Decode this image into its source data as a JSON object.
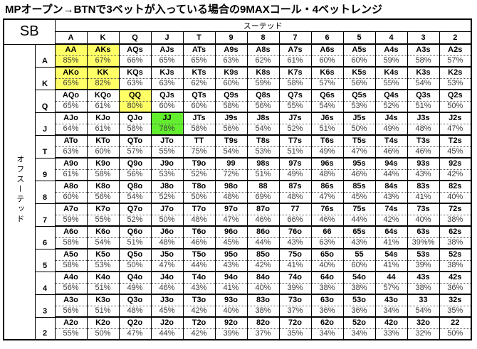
{
  "title": "MPオープン→BTNで3ベットが入っている場合の9MAXコール・4ベットレンジ",
  "position_label": "SB",
  "colors": {
    "highlight_yellow": "#ffff66",
    "highlight_green": "#63ef2e",
    "grid_line": "#000000",
    "pct_text": "#3a3a3a"
  },
  "chart_data": {
    "type": "table",
    "title": "MPオープン→BTNで3ベットが入っている場合の9MAXコール・4ベットレンジ",
    "corner_label": "SB",
    "suited_label": "スーテッド",
    "offsuit_label": "オフスーテッド",
    "columns": [
      "A",
      "K",
      "Q",
      "J",
      "T",
      "9",
      "8",
      "7",
      "6",
      "5",
      "4",
      "3",
      "2"
    ],
    "highlight_legend": {
      "y": "yellow (4bet pairs/AK)",
      "g": "green (JJ)"
    },
    "rows": [
      {
        "label": "A",
        "cells": [
          [
            "AA",
            "85%",
            "y"
          ],
          [
            "AKs",
            "67%",
            "y"
          ],
          [
            "AQs",
            "66%"
          ],
          [
            "AJs",
            "65%"
          ],
          [
            "ATs",
            "65%"
          ],
          [
            "A9s",
            "63%"
          ],
          [
            "A8s",
            "62%"
          ],
          [
            "A7s",
            "61%"
          ],
          [
            "A6s",
            "60%"
          ],
          [
            "A5s",
            "60%"
          ],
          [
            "A4s",
            "59%"
          ],
          [
            "A3s",
            "58%"
          ],
          [
            "A2s",
            "57%"
          ]
        ]
      },
      {
        "label": "K",
        "cells": [
          [
            "AKo",
            "65%",
            "y"
          ],
          [
            "KK",
            "82%",
            "y"
          ],
          [
            "KQs",
            "63%"
          ],
          [
            "KJs",
            "63%"
          ],
          [
            "KTs",
            "62%"
          ],
          [
            "K9s",
            "60%"
          ],
          [
            "K8s",
            "59%"
          ],
          [
            "K7s",
            "58%"
          ],
          [
            "K6s",
            "57%"
          ],
          [
            "K5s",
            "56%"
          ],
          [
            "K4s",
            "55%"
          ],
          [
            "K3s",
            "54%"
          ],
          [
            "K2s",
            "53%"
          ]
        ]
      },
      {
        "label": "Q",
        "cells": [
          [
            "AQo",
            "65%"
          ],
          [
            "KQo",
            "61%"
          ],
          [
            "QQ",
            "80%",
            "y"
          ],
          [
            "QJs",
            "60%"
          ],
          [
            "QTs",
            "60%"
          ],
          [
            "Q9s",
            "58%"
          ],
          [
            "Q8s",
            "56%"
          ],
          [
            "Q7s",
            "55%"
          ],
          [
            "Q6s",
            "54%"
          ],
          [
            "Q5s",
            "53%"
          ],
          [
            "Q4s",
            "52%"
          ],
          [
            "Q3s",
            "51%"
          ],
          [
            "Q2s",
            "50%"
          ]
        ]
      },
      {
        "label": "J",
        "cells": [
          [
            "AJo",
            "64%"
          ],
          [
            "KJo",
            "61%"
          ],
          [
            "QJo",
            "58%"
          ],
          [
            "JJ",
            "78%",
            "g"
          ],
          [
            "JTs",
            "58%"
          ],
          [
            "J9s",
            "56%"
          ],
          [
            "J8s",
            "54%"
          ],
          [
            "J7s",
            "52%"
          ],
          [
            "J6s",
            "51%"
          ],
          [
            "J5s",
            "50%"
          ],
          [
            "J4s",
            "49%"
          ],
          [
            "J3s",
            "48%"
          ],
          [
            "J2s",
            "47%"
          ]
        ]
      },
      {
        "label": "T",
        "cells": [
          [
            "ATo",
            "63%"
          ],
          [
            "KTo",
            "60%"
          ],
          [
            "QTo",
            "57%"
          ],
          [
            "JTo",
            "55%"
          ],
          [
            "TT",
            "75%"
          ],
          [
            "T9s",
            "54%"
          ],
          [
            "T8s",
            "53%"
          ],
          [
            "T7s",
            "51%"
          ],
          [
            "T6s",
            "49%"
          ],
          [
            "T5s",
            "47%"
          ],
          [
            "T4s",
            "46%"
          ],
          [
            "T3s",
            "46%"
          ],
          [
            "T2s",
            "45%"
          ]
        ]
      },
      {
        "label": "9",
        "cells": [
          [
            "A9o",
            "61%"
          ],
          [
            "K9o",
            "58%"
          ],
          [
            "Q9o",
            "56%"
          ],
          [
            "J9o",
            "53%"
          ],
          [
            "T9o",
            "52%"
          ],
          [
            "99",
            "72%"
          ],
          [
            "98s",
            "51%"
          ],
          [
            "97s",
            "49%"
          ],
          [
            "96s",
            "48%"
          ],
          [
            "95s",
            "46%"
          ],
          [
            "94s",
            "44%"
          ],
          [
            "93s",
            "43%"
          ],
          [
            "92s",
            "42%"
          ]
        ]
      },
      {
        "label": "8",
        "cells": [
          [
            "A8o",
            "60%"
          ],
          [
            "K8o",
            "56%"
          ],
          [
            "Q8o",
            "54%"
          ],
          [
            "J8o",
            "52%"
          ],
          [
            "T8o",
            "50%"
          ],
          [
            "98o",
            "48%"
          ],
          [
            "88",
            "69%"
          ],
          [
            "87s",
            "48%"
          ],
          [
            "86s",
            "47%"
          ],
          [
            "85s",
            "45%"
          ],
          [
            "84s",
            "43%"
          ],
          [
            "83s",
            "41%"
          ],
          [
            "82s",
            "40%"
          ]
        ]
      },
      {
        "label": "7",
        "cells": [
          [
            "A7o",
            "59%"
          ],
          [
            "K7o",
            "55%"
          ],
          [
            "Q7o",
            "52%"
          ],
          [
            "J7o",
            "50%"
          ],
          [
            "T7o",
            "48%"
          ],
          [
            "97o",
            "47%"
          ],
          [
            "87o",
            "46%"
          ],
          [
            "77",
            "66%"
          ],
          [
            "76s",
            "46%"
          ],
          [
            "75s",
            "44%"
          ],
          [
            "74s",
            "42%"
          ],
          [
            "73s",
            "40%"
          ],
          [
            "72s",
            "38%"
          ]
        ]
      },
      {
        "label": "6",
        "cells": [
          [
            "A6o",
            "58%"
          ],
          [
            "K6o",
            "54%"
          ],
          [
            "Q6o",
            "51%"
          ],
          [
            "J6o",
            "48%"
          ],
          [
            "T6o",
            "46%"
          ],
          [
            "96o",
            "45%"
          ],
          [
            "86o",
            "44%"
          ],
          [
            "76o",
            "43%"
          ],
          [
            "66",
            "63%"
          ],
          [
            "65s",
            "43%"
          ],
          [
            "64s",
            "41%"
          ],
          [
            "63s",
            "39%%"
          ],
          [
            "62s",
            "38%"
          ]
        ]
      },
      {
        "label": "5",
        "cells": [
          [
            "A5o",
            "58%"
          ],
          [
            "K5o",
            "53%"
          ],
          [
            "Q5o",
            "50%"
          ],
          [
            "J5o",
            "47%"
          ],
          [
            "T5o",
            "44%"
          ],
          [
            "95o",
            "43%"
          ],
          [
            "85o",
            "42%"
          ],
          [
            "75o",
            "41%"
          ],
          [
            "65o",
            "40%"
          ],
          [
            "55",
            "60%"
          ],
          [
            "54s",
            "41%"
          ],
          [
            "53s",
            "39%"
          ],
          [
            "52s",
            "38%"
          ]
        ]
      },
      {
        "label": "4",
        "cells": [
          [
            "A4o",
            "56%"
          ],
          [
            "K4o",
            "51%"
          ],
          [
            "Q4o",
            "49%"
          ],
          [
            "J4o",
            "46%"
          ],
          [
            "T4o",
            "43%"
          ],
          [
            "94o",
            "41%"
          ],
          [
            "84o",
            "40%"
          ],
          [
            "74o",
            "39%"
          ],
          [
            "64o",
            "38%"
          ],
          [
            "54o",
            "38%"
          ],
          [
            "44",
            "57%"
          ],
          [
            "43s",
            "38%"
          ],
          [
            "42s",
            "36%"
          ]
        ]
      },
      {
        "label": "3",
        "cells": [
          [
            "A3o",
            "56%"
          ],
          [
            "K3o",
            "51%"
          ],
          [
            "Q3o",
            "48%"
          ],
          [
            "J3o",
            "45%"
          ],
          [
            "T3o",
            "42%"
          ],
          [
            "93o",
            "40%"
          ],
          [
            "83o",
            "38%"
          ],
          [
            "73o",
            "37%"
          ],
          [
            "63o",
            "36%"
          ],
          [
            "53o",
            "36%"
          ],
          [
            "43o",
            "34%"
          ],
          [
            "33",
            "54%"
          ],
          [
            "32s",
            "35%"
          ]
        ]
      },
      {
        "label": "2",
        "cells": [
          [
            "A2o",
            "55%"
          ],
          [
            "K2o",
            "50%"
          ],
          [
            "Q2o",
            "47%"
          ],
          [
            "J2o",
            "44%"
          ],
          [
            "T2o",
            "42%"
          ],
          [
            "92o",
            "39%"
          ],
          [
            "82o",
            "37%"
          ],
          [
            "72o",
            "35%"
          ],
          [
            "62o",
            "34%"
          ],
          [
            "52o",
            "34%"
          ],
          [
            "42o",
            "33%"
          ],
          [
            "32o",
            "32%"
          ],
          [
            "22",
            "50%"
          ]
        ]
      }
    ]
  }
}
